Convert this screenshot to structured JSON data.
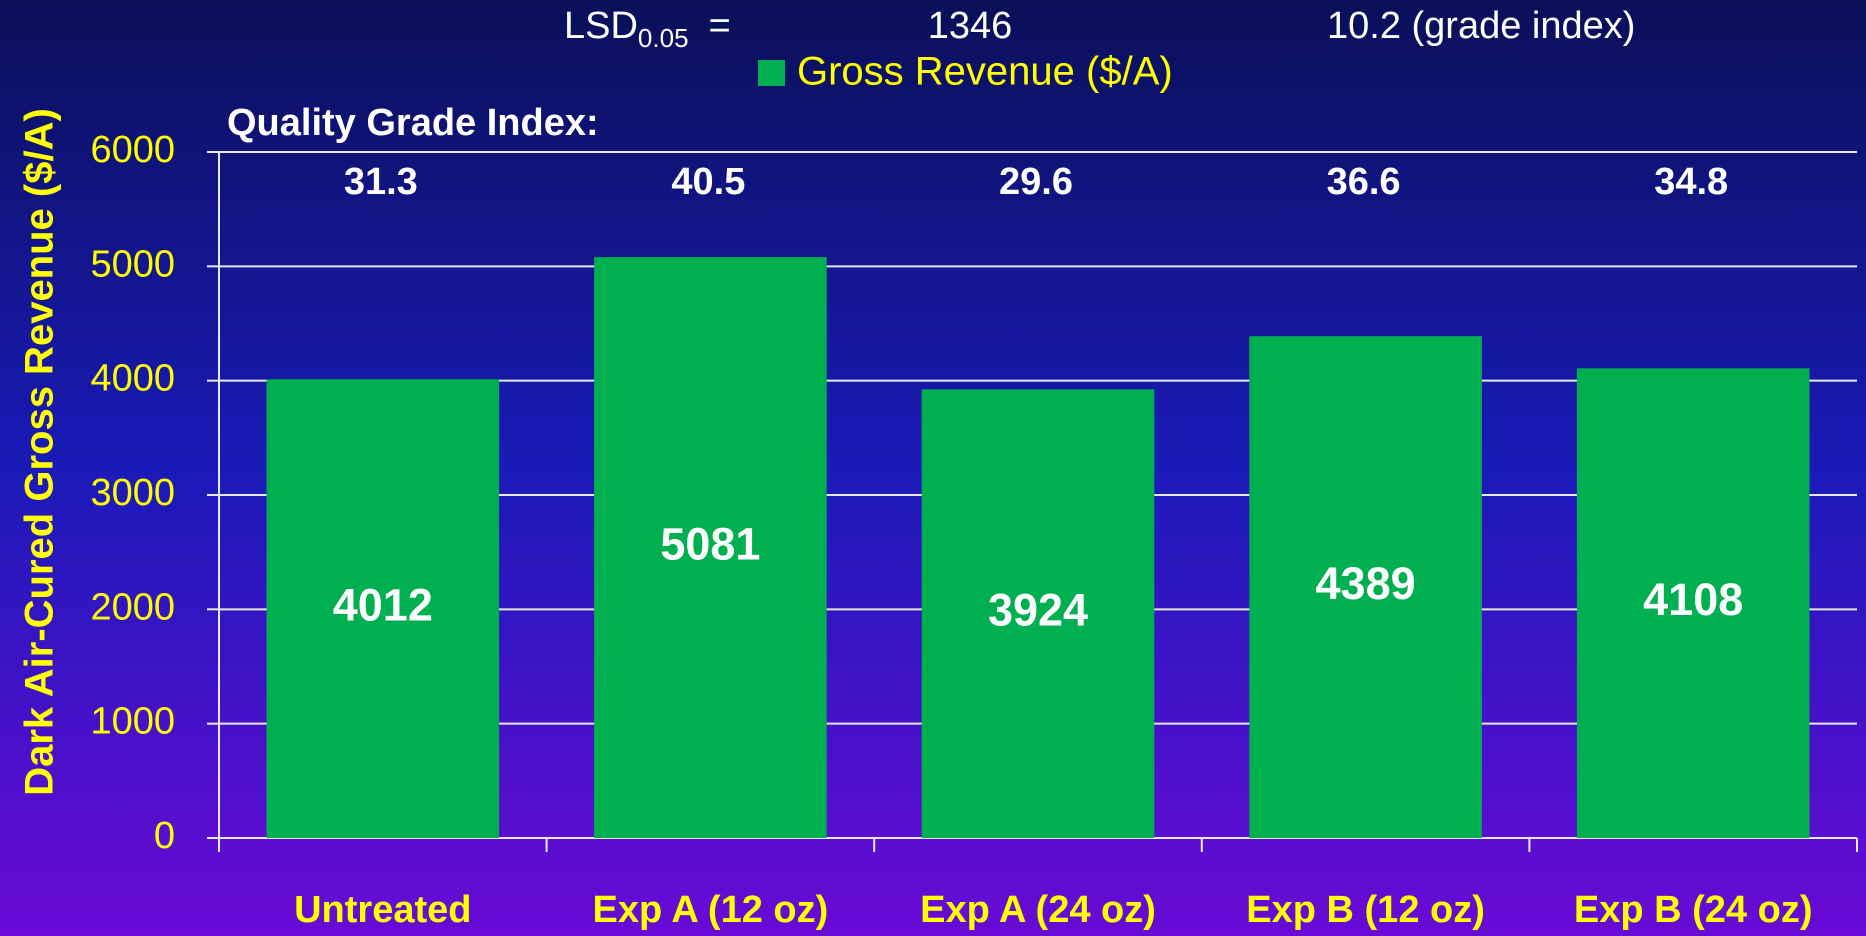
{
  "chart_data": {
    "type": "bar",
    "ylabel": "Dark Air-Cured Gross Revenue ($/A)",
    "categories": [
      "Untreated",
      "Exp A (12 oz)",
      "Exp A (24 oz)",
      "Exp B (12 oz)",
      "Exp B (24 oz)"
    ],
    "series": [
      {
        "name": "Gross Revenue ($/A)",
        "color": "#00b050",
        "values": [
          4012,
          5081,
          3924,
          4389,
          4108
        ]
      }
    ],
    "ylim": [
      0,
      6000
    ],
    "yticks": [
      0,
      1000,
      2000,
      3000,
      4000,
      5000,
      6000
    ],
    "grid": true,
    "legend": "top",
    "quality_grade_index": {
      "label": "Quality Grade Index:",
      "values": [
        31.3,
        40.5,
        29.6,
        36.6,
        34.8
      ]
    },
    "lsd": {
      "label": "LSD",
      "subscript": "0.05",
      "equals": "=",
      "revenue": 1346,
      "grade_index": "10.2 (grade index)"
    }
  }
}
